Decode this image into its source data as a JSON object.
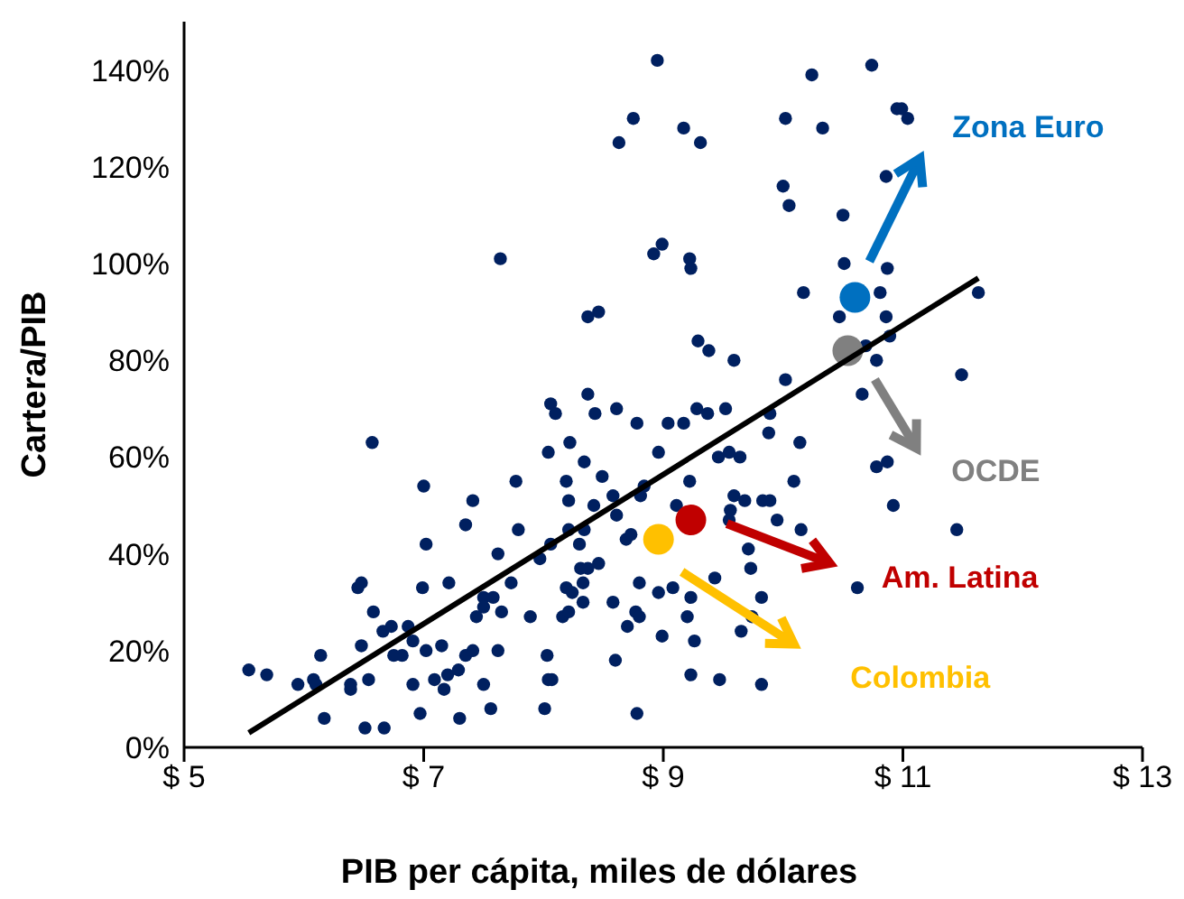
{
  "chart_data": {
    "type": "scatter",
    "xlabel": "PIB per cápita, miles de dólares",
    "ylabel": "Cartera/PIB",
    "xlim": [
      5,
      13
    ],
    "xticks": [
      {
        "value": 5,
        "label": "$ 5"
      },
      {
        "value": 7,
        "label": "$ 7"
      },
      {
        "value": 9,
        "label": "$ 9"
      },
      {
        "value": 11,
        "label": "$ 11"
      },
      {
        "value": 13,
        "label": "$ 13"
      }
    ],
    "ylim": [
      0,
      150
    ],
    "yticks": [
      {
        "value": 0,
        "label": "0%"
      },
      {
        "value": 20,
        "label": "20%"
      },
      {
        "value": 40,
        "label": "40%"
      },
      {
        "value": 60,
        "label": "60%"
      },
      {
        "value": 80,
        "label": "80%"
      },
      {
        "value": 100,
        "label": "100%"
      },
      {
        "value": 120,
        "label": "120%"
      },
      {
        "value": 140,
        "label": "140%"
      }
    ],
    "marker": "circle",
    "series": [
      {
        "color": "#002060",
        "x": [
          8.95,
          8.75,
          8.63,
          7.64,
          8.92,
          8.99,
          8.37,
          8.46,
          8.37,
          10.74,
          10.24,
          10.02,
          10.33,
          10.95,
          10.99,
          11.04,
          9.17,
          9.31,
          10.86,
          10.0,
          10.05,
          10.5,
          9.22,
          9.23,
          10.51,
          10.87,
          10.17,
          10.81,
          10.47,
          10.86,
          11.63,
          10.89,
          9.29,
          9.38,
          9.59,
          10.78,
          10.69,
          11.49,
          10.02,
          10.66,
          8.06,
          8.1,
          8.43,
          8.61,
          8.78,
          9.04,
          6.57,
          8.04,
          8.22,
          8.34,
          8.96,
          7.0,
          7.77,
          8.49,
          8.19,
          7.41,
          8.21,
          8.42,
          8.58,
          8.84,
          8.81,
          8.61,
          7.35,
          7.79,
          8.21,
          8.34,
          8.69,
          8.73,
          7.02,
          8.06,
          8.3,
          7.62,
          7.97,
          6.45,
          6.48,
          6.99,
          7.21,
          7.73,
          8.31,
          8.37,
          8.46,
          8.19,
          8.24,
          8.33,
          8.8,
          7.5,
          7.58,
          7.5,
          7.65,
          7.44,
          6.58,
          6.66,
          6.73,
          6.87,
          6.91,
          7.89,
          8.16,
          8.21,
          8.33,
          8.58,
          8.77,
          8.7,
          8.8,
          8.99,
          6.48,
          6.14,
          6.75,
          6.82,
          7.02,
          7.15,
          7.35,
          7.41,
          7.62,
          8.03,
          8.6,
          5.54,
          5.69,
          5.95,
          6.08,
          6.1,
          6.39,
          6.39,
          6.54,
          6.91,
          7.09,
          7.17,
          7.2,
          7.29,
          7.5,
          8.04,
          8.07,
          6.17,
          6.51,
          6.67,
          6.97,
          7.3,
          7.56,
          8.01,
          8.78,
          9.17,
          9.28,
          9.37,
          9.52,
          9.89,
          9.88,
          10.14,
          9.46,
          9.55,
          9.64,
          9.22,
          10.09,
          10.78,
          10.87,
          9.11,
          9.59,
          9.56,
          9.68,
          9.83,
          9.89,
          9.95,
          10.15,
          9.55,
          10.92,
          11.45,
          9.71,
          9.73,
          9.43,
          10.62,
          8.96,
          9.08,
          9.23,
          9.82,
          9.2,
          9.26,
          9.65,
          9.74,
          9.23,
          9.47,
          9.82
        ],
        "values": [
          142,
          130,
          125,
          101,
          102,
          104,
          89,
          90,
          73,
          141,
          139,
          130,
          128,
          132,
          132,
          130,
          128,
          125,
          118,
          116,
          112,
          110,
          101,
          99,
          100,
          99,
          94,
          94,
          89,
          89,
          94,
          85,
          84,
          82,
          80,
          80,
          83,
          77,
          76,
          73,
          71,
          69,
          69,
          70,
          67,
          67,
          63,
          61,
          63,
          59,
          61,
          54,
          55,
          56,
          55,
          51,
          51,
          50,
          52,
          54,
          52,
          48,
          46,
          45,
          45,
          45,
          43,
          44,
          42,
          42,
          42,
          40,
          39,
          33,
          34,
          33,
          34,
          34,
          37,
          37,
          38,
          33,
          32,
          34,
          34,
          31,
          31,
          29,
          28,
          27,
          28,
          24,
          25,
          25,
          22,
          27,
          27,
          28,
          30,
          30,
          28,
          25,
          27,
          23,
          21,
          19,
          19,
          19,
          20,
          21,
          19,
          20,
          20,
          19,
          18,
          16,
          15,
          13,
          14,
          13,
          13,
          12,
          14,
          13,
          14,
          12,
          15,
          16,
          13,
          14,
          14,
          6,
          4,
          4,
          7,
          6,
          8,
          8,
          7,
          67,
          70,
          69,
          70,
          69,
          65,
          63,
          60,
          61,
          60,
          55,
          55,
          58,
          59,
          50,
          52,
          49,
          51,
          51,
          51,
          47,
          45,
          47,
          50,
          45,
          41,
          37,
          35,
          33,
          32,
          33,
          31,
          31,
          27,
          22,
          24,
          27,
          15,
          14,
          13
        ]
      },
      {
        "name": "Zona Euro",
        "color": "#0070c0",
        "x": [
          10.6
        ],
        "values": [
          93
        ]
      },
      {
        "name": "OCDE",
        "color": "#808080",
        "x": [
          10.54
        ],
        "values": [
          82
        ]
      },
      {
        "name": "Am. Latina",
        "color": "#c00000",
        "x": [
          9.23
        ],
        "values": [
          47
        ]
      },
      {
        "name": "Colombia",
        "color": "#ffc000",
        "x": [
          8.96
        ],
        "values": [
          43
        ]
      },
      {
        "type": "line",
        "color": "#000000",
        "marker": "none",
        "x": [
          5.54,
          11.63
        ],
        "values": [
          3,
          97
        ]
      }
    ]
  }
}
